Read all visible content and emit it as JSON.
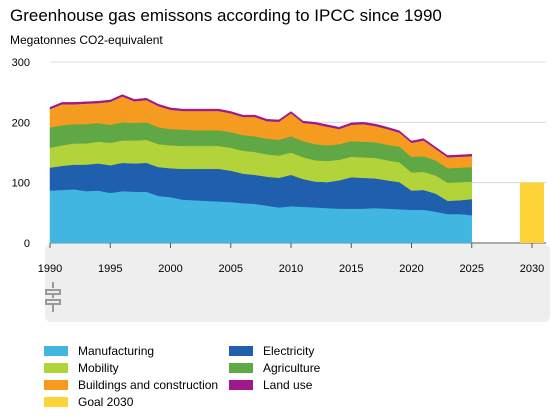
{
  "title": "Greenhouse gas emissons according to IPCC since 1990",
  "subtitle": "Megatonnes CO2-equivalent",
  "chart_data": {
    "type": "area",
    "stacked": true,
    "x": [
      1990,
      1991,
      1992,
      1993,
      1994,
      1995,
      1996,
      1997,
      1998,
      1999,
      2000,
      2001,
      2002,
      2003,
      2004,
      2005,
      2006,
      2007,
      2008,
      2009,
      2010,
      2011,
      2012,
      2013,
      2014,
      2015,
      2016,
      2017,
      2018,
      2019,
      2020,
      2021,
      2022,
      2023,
      2024,
      2025
    ],
    "xlim": [
      1990,
      2030
    ],
    "ylim": [
      0,
      300
    ],
    "x_ticks": [
      "1990",
      "1995",
      "2000",
      "2005",
      "2010",
      "2015",
      "2020",
      "2025",
      "2030"
    ],
    "y_ticks": [
      "0",
      "100",
      "200",
      "300"
    ],
    "grid": true,
    "legend_position": "bottom",
    "series": [
      {
        "name": "Manufacturing",
        "color": "#41b6e0",
        "values": [
          87,
          88,
          89,
          86,
          87,
          83,
          86,
          85,
          85,
          78,
          76,
          72,
          71,
          70,
          69,
          68,
          66,
          65,
          62,
          59,
          61,
          60,
          59,
          58,
          57,
          57,
          57,
          58,
          57,
          56,
          55,
          55,
          52,
          48,
          48,
          46
        ]
      },
      {
        "name": "Electricity",
        "color": "#1f5fae",
        "values": [
          38,
          40,
          41,
          44,
          45,
          46,
          47,
          47,
          48,
          48,
          48,
          51,
          52,
          53,
          54,
          52,
          49,
          48,
          48,
          49,
          52,
          46,
          43,
          43,
          47,
          52,
          51,
          49,
          47,
          45,
          32,
          33,
          30,
          22,
          23,
          27
        ]
      },
      {
        "name": "Mobility",
        "color": "#b3d33a",
        "values": [
          33,
          34,
          35,
          35,
          36,
          37,
          37,
          38,
          38,
          38,
          38,
          38,
          38,
          38,
          38,
          38,
          38,
          38,
          37,
          37,
          37,
          36,
          35,
          35,
          34,
          34,
          34,
          34,
          33,
          33,
          30,
          30,
          30,
          30,
          30,
          29
        ]
      },
      {
        "name": "Agriculture",
        "color": "#60a845",
        "values": [
          34,
          33,
          32,
          32,
          31,
          30,
          30,
          29,
          29,
          28,
          27,
          27,
          26,
          26,
          26,
          26,
          26,
          26,
          26,
          26,
          27,
          27,
          27,
          26,
          26,
          26,
          26,
          26,
          26,
          26,
          26,
          26,
          25,
          24,
          24,
          24
        ]
      },
      {
        "name": "Buildings and construction",
        "color": "#f59b1f",
        "values": [
          30,
          35,
          33,
          34,
          33,
          38,
          43,
          36,
          37,
          35,
          32,
          31,
          32,
          32,
          32,
          31,
          30,
          32,
          29,
          30,
          38,
          30,
          33,
          31,
          25,
          27,
          29,
          27,
          26,
          23,
          23,
          26,
          19,
          18,
          18,
          18
        ]
      },
      {
        "name": "Land use",
        "color": "#a0188d",
        "values": [
          3,
          3,
          3,
          3,
          3,
          3,
          3,
          3,
          3,
          3,
          3,
          3,
          3,
          3,
          3,
          3,
          3,
          3,
          3,
          3,
          3,
          3,
          3,
          3,
          3,
          3,
          3,
          3,
          3,
          3,
          3,
          3,
          3,
          3,
          3,
          3
        ]
      }
    ],
    "goal": {
      "name": "Goal 2030",
      "color": "#fdd338",
      "x": 2030,
      "value": 100
    }
  },
  "legend": [
    {
      "label": "Manufacturing",
      "color": "#41b6e0"
    },
    {
      "label": "Electricity",
      "color": "#1f5fae"
    },
    {
      "label": "Mobility",
      "color": "#b3d33a"
    },
    {
      "label": "Agriculture",
      "color": "#60a845"
    },
    {
      "label": "Buildings and construction",
      "color": "#f59b1f"
    },
    {
      "label": "Land use",
      "color": "#a0188d"
    },
    {
      "label": "Goal 2030",
      "color": "#fdd338"
    }
  ]
}
